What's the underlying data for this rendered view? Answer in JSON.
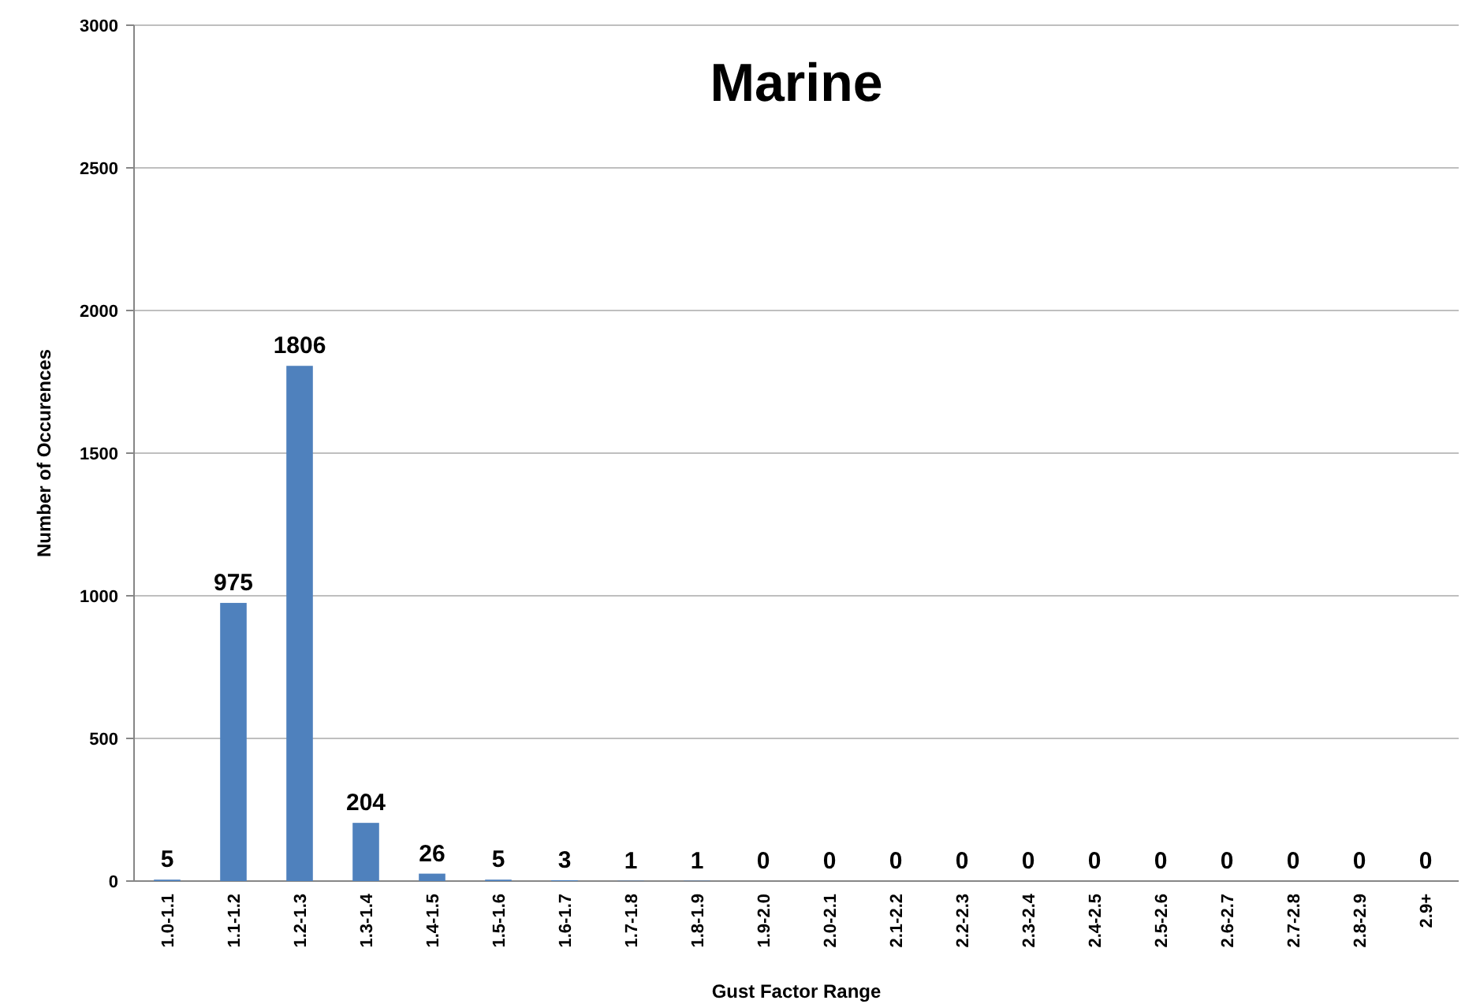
{
  "chart_data": {
    "type": "bar",
    "title": "Marine",
    "xlabel": "Gust Factor Range",
    "ylabel": "Number of Occurences",
    "categories": [
      "1.0-1.1",
      "1.1-1.2",
      "1.2-1.3",
      "1.3-1.4",
      "1.4-1.5",
      "1.5-1.6",
      "1.6-1.7",
      "1.7-1.8",
      "1.8-1.9",
      "1.9-2.0",
      "2.0-2.1",
      "2.1-2.2",
      "2.2-2.3",
      "2.3-2.4",
      "2.4-2.5",
      "2.5-2.6",
      "2.6-2.7",
      "2.7-2.8",
      "2.8-2.9",
      "2.9+"
    ],
    "values": [
      5,
      975,
      1806,
      204,
      26,
      5,
      3,
      1,
      1,
      0,
      0,
      0,
      0,
      0,
      0,
      0,
      0,
      0,
      0,
      0
    ],
    "color": "#4f81bd",
    "ylim": [
      0,
      3000
    ],
    "yticks": [
      0,
      500,
      1000,
      1500,
      2000,
      2500,
      3000
    ],
    "grid": "y",
    "data_labels": true
  }
}
